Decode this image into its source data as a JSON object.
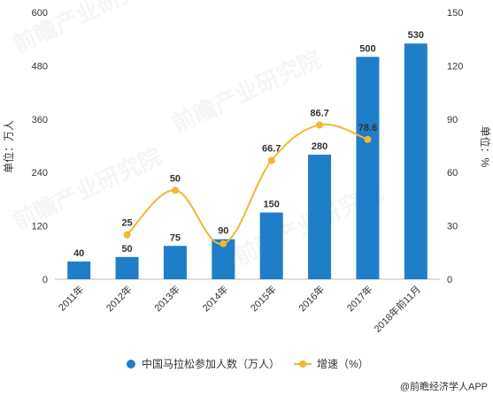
{
  "chart_data": {
    "type": "bar",
    "categories": [
      "2011年",
      "2012年",
      "2013年",
      "2014年",
      "2015年",
      "2016年",
      "2017年",
      "2018年前11月"
    ],
    "series": [
      {
        "name": "中国马拉松参加人数（万人）",
        "type": "bar",
        "axis": "left",
        "values": [
          40,
          50,
          75,
          90,
          150,
          280,
          500,
          530
        ],
        "labels": [
          "40",
          "50",
          "75",
          "90",
          "150",
          "280",
          "500",
          "530"
        ],
        "color": "#1f7ec8"
      },
      {
        "name": "增速（%）",
        "type": "line",
        "axis": "right",
        "values": [
          null,
          25,
          50,
          20,
          66.7,
          86.7,
          78.6,
          null
        ],
        "labels": [
          "",
          "25",
          "50",
          "",
          "66.7",
          "86.7",
          "78.6",
          ""
        ],
        "color": "#f2b62f"
      }
    ],
    "ylabel_left": "单位：万人",
    "ylabel_right": "单位：%",
    "ylim_left": [
      0,
      600
    ],
    "ylim_right": [
      0,
      150
    ],
    "yticks_left": [
      "0",
      "120",
      "240",
      "360",
      "480",
      "600"
    ],
    "yticks_right": [
      "0",
      "30",
      "60",
      "90",
      "120",
      "150"
    ],
    "grid": false,
    "legend": "bottom"
  },
  "watermark": "前瞻产业研究院",
  "credit": "@前瞻经济学人APP"
}
